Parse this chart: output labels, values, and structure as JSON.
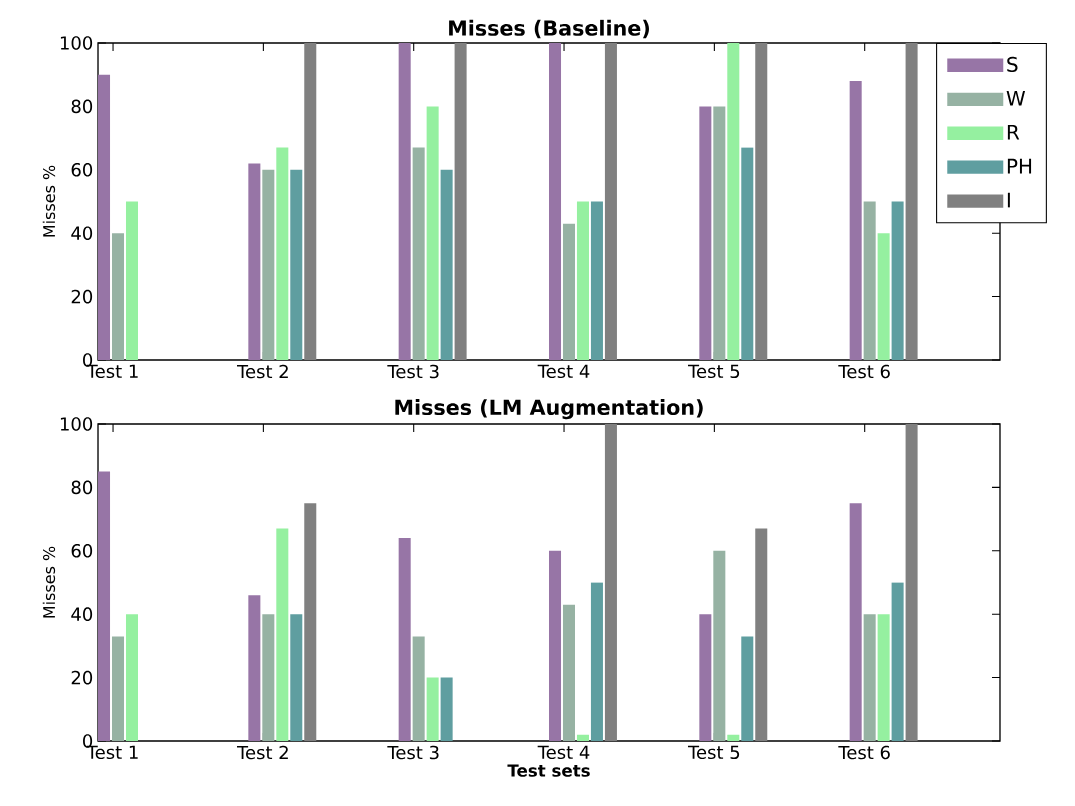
{
  "chart_data": [
    {
      "type": "bar",
      "title": "Misses (Baseline)",
      "ylabel": "Misses %",
      "categories": [
        "Test 1",
        "Test 2",
        "Test 3",
        "Test 4",
        "Test 5",
        "Test 6"
      ],
      "ylim": [
        0,
        100
      ],
      "yticks": [
        0,
        20,
        40,
        60,
        80,
        100
      ],
      "legend": "top right",
      "series": [
        {
          "name": "S",
          "color": "#9775a6",
          "values": [
            90,
            62,
            100,
            100,
            80,
            88
          ]
        },
        {
          "name": "W",
          "color": "#96b2a3",
          "values": [
            40,
            60,
            67,
            43,
            80,
            50
          ]
        },
        {
          "name": "R",
          "color": "#95f0a0",
          "values": [
            50,
            67,
            80,
            50,
            100,
            40
          ]
        },
        {
          "name": "PH",
          "color": "#5f9ea0",
          "values": [
            0,
            60,
            60,
            50,
            67,
            50
          ]
        },
        {
          "name": "I",
          "color": "#808080",
          "values": [
            0,
            100,
            100,
            100,
            100,
            100
          ]
        }
      ]
    },
    {
      "type": "bar",
      "title": "Misses (LM Augmentation)",
      "xlabel": "Test sets",
      "ylabel": "Misses %",
      "categories": [
        "Test 1",
        "Test 2",
        "Test 3",
        "Test 4",
        "Test 5",
        "Test 6"
      ],
      "ylim": [
        0,
        100
      ],
      "yticks": [
        0,
        20,
        40,
        60,
        80,
        100
      ],
      "series": [
        {
          "color": "#9775a6",
          "values": [
            85,
            46,
            64,
            60,
            40,
            75
          ]
        },
        {
          "color": "#96b2a3",
          "values": [
            33,
            40,
            33,
            43,
            60,
            40
          ]
        },
        {
          "color": "#95f0a0",
          "values": [
            40,
            67,
            20,
            2,
            2,
            40
          ]
        },
        {
          "color": "#5f9ea0",
          "values": [
            0,
            40,
            20,
            50,
            33,
            50
          ]
        },
        {
          "color": "#808080",
          "values": [
            0,
            75,
            0,
            100,
            67,
            100
          ]
        }
      ]
    }
  ]
}
